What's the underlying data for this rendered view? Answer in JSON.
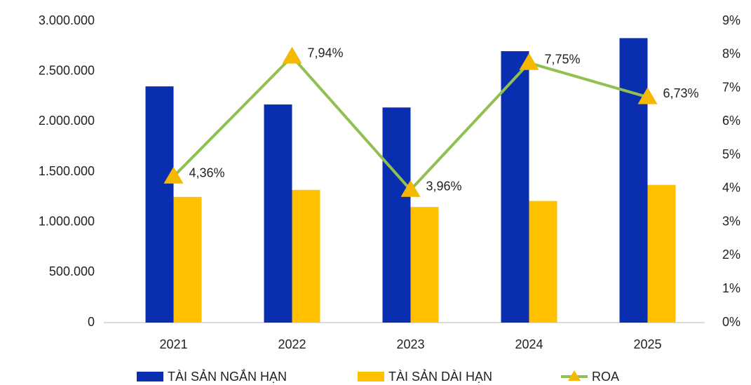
{
  "chart_data": {
    "type": "bar_line",
    "categories": [
      "2021",
      "2022",
      "2023",
      "2024",
      "2025"
    ],
    "series": [
      {
        "name": "TÀI SẢN NGẮN HẠN",
        "color": "#0a2eb0",
        "type": "bar",
        "values": [
          2350000,
          2170000,
          2140000,
          2700000,
          2830000
        ]
      },
      {
        "name": "TÀI SẢN DÀI HẠN",
        "color": "#ffc000",
        "type": "bar",
        "values": [
          1250000,
          1320000,
          1150000,
          1210000,
          1370000
        ]
      },
      {
        "name": "ROA",
        "color": "#92c050",
        "marker_color": "#f5b800",
        "type": "line",
        "axis": "y2",
        "values": [
          4.36,
          7.94,
          3.96,
          7.75,
          6.73
        ],
        "value_labels": [
          "4,36%",
          "7,94%",
          "3,96%",
          "7,75%",
          "6,73%"
        ]
      }
    ],
    "ylim": [
      0,
      3000000
    ],
    "yticks": [
      0,
      {
        "value": 500000,
        "label": "500.000"
      },
      {
        "value": 1000000,
        "label": "1.000.000"
      },
      {
        "value": 1500000,
        "label": "1.500.000"
      },
      {
        "value": 2000000,
        "label": "2.000.000"
      },
      {
        "value": 2500000,
        "label": "2.500.000"
      },
      {
        "value": 3000000,
        "label": "3.000.000"
      }
    ],
    "y2lim": [
      0,
      9
    ],
    "y2ticks": [
      {
        "value": 0,
        "label": "0%"
      },
      {
        "value": 1,
        "label": "1%"
      },
      {
        "value": 2,
        "label": "2%"
      },
      {
        "value": 3,
        "label": "3%"
      },
      {
        "value": 4,
        "label": "4%"
      },
      {
        "value": 5,
        "label": "5%"
      },
      {
        "value": 6,
        "label": "6%"
      },
      {
        "value": 7,
        "label": "7%"
      },
      {
        "value": 8,
        "label": "8%"
      },
      {
        "value": 9,
        "label": "9%"
      }
    ],
    "legend": "bottom",
    "grid": false
  }
}
